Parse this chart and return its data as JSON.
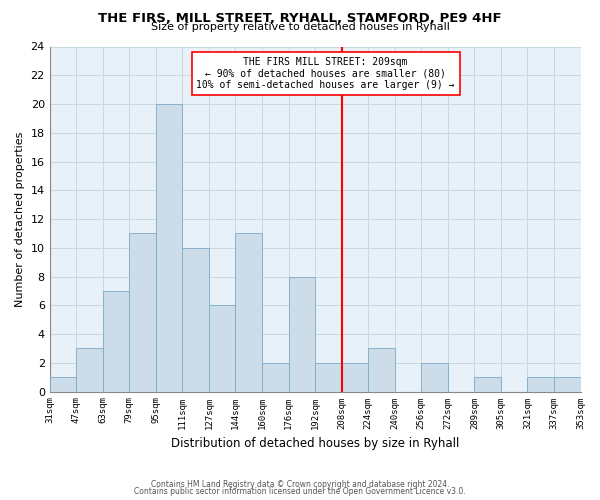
{
  "title": "THE FIRS, MILL STREET, RYHALL, STAMFORD, PE9 4HF",
  "subtitle": "Size of property relative to detached houses in Ryhall",
  "xlabel": "Distribution of detached houses by size in Ryhall",
  "ylabel": "Number of detached properties",
  "bar_color": "#ccdce8",
  "bar_edgecolor": "#7aaac8",
  "categories": [
    "31sqm",
    "47sqm",
    "63sqm",
    "79sqm",
    "95sqm",
    "111sqm",
    "127sqm",
    "144sqm",
    "160sqm",
    "176sqm",
    "192sqm",
    "208sqm",
    "224sqm",
    "240sqm",
    "256sqm",
    "272sqm",
    "289sqm",
    "305sqm",
    "321sqm",
    "337sqm",
    "353sqm"
  ],
  "values": [
    1,
    3,
    7,
    11,
    20,
    10,
    6,
    11,
    2,
    8,
    2,
    2,
    3,
    0,
    2,
    0,
    1,
    0,
    1,
    1
  ],
  "ylim": [
    0,
    24
  ],
  "yticks": [
    0,
    2,
    4,
    6,
    8,
    10,
    12,
    14,
    16,
    18,
    20,
    22,
    24
  ],
  "reference_line_x": 11,
  "reference_line_label": "THE FIRS MILL STREET: 209sqm",
  "annotation_line1": "← 90% of detached houses are smaller (80)",
  "annotation_line2": "10% of semi-detached houses are larger (9) →",
  "footer_line1": "Contains HM Land Registry data © Crown copyright and database right 2024.",
  "footer_line2": "Contains public sector information licensed under the Open Government Licence v3.0.",
  "background_color": "#ffffff",
  "grid_color": "#c8d8e0"
}
